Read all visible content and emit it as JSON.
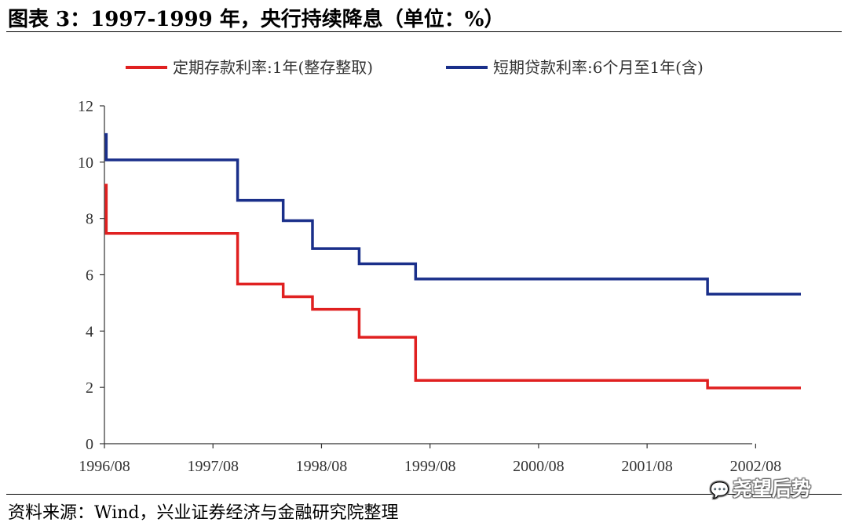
{
  "header": {
    "title": "图表 3：1997-1999 年，央行持续降息（单位：%）"
  },
  "footer": {
    "source": "资料来源：Wind，兴业证券经济与金融研究院整理",
    "watermark": "尧望后势"
  },
  "colors": {
    "deposit": "#e02020",
    "loan": "#1a2f8a",
    "axis": "#333333"
  },
  "chart_data": {
    "type": "line",
    "step": true,
    "title": "",
    "xlabel": "",
    "ylabel": "",
    "ylim": [
      0,
      12
    ],
    "yticks": [
      "0",
      "2",
      "4",
      "6",
      "8",
      "10",
      "12"
    ],
    "xlim": [
      1996.583,
      2003.0
    ],
    "xticks": [
      {
        "label": "1996/08",
        "x": 1996.583
      },
      {
        "label": "1997/08",
        "x": 1997.583
      },
      {
        "label": "1998/08",
        "x": 1998.583
      },
      {
        "label": "1999/08",
        "x": 1999.583
      },
      {
        "label": "2000/08",
        "x": 2000.583
      },
      {
        "label": "2001/08",
        "x": 2001.583
      },
      {
        "label": "2002/08",
        "x": 2002.583
      }
    ],
    "legend_position": "top",
    "series": [
      {
        "name": "定期存款利率:1年(整存整取)",
        "color_key": "deposit",
        "points": [
          {
            "x": 1996.583,
            "y": 9.18
          },
          {
            "x": 1996.6,
            "y": 7.47
          },
          {
            "x": 1997.81,
            "y": 5.67
          },
          {
            "x": 1998.23,
            "y": 5.22
          },
          {
            "x": 1998.5,
            "y": 4.77
          },
          {
            "x": 1998.93,
            "y": 3.78
          },
          {
            "x": 1999.45,
            "y": 2.25
          },
          {
            "x": 2002.14,
            "y": 1.98
          },
          {
            "x": 2003.0,
            "y": 1.98
          }
        ]
      },
      {
        "name": "短期贷款利率:6个月至1年(含)",
        "color_key": "loan",
        "points": [
          {
            "x": 1996.583,
            "y": 10.98
          },
          {
            "x": 1996.6,
            "y": 10.08
          },
          {
            "x": 1997.81,
            "y": 8.64
          },
          {
            "x": 1998.23,
            "y": 7.92
          },
          {
            "x": 1998.5,
            "y": 6.93
          },
          {
            "x": 1998.93,
            "y": 6.39
          },
          {
            "x": 1999.45,
            "y": 5.85
          },
          {
            "x": 2002.14,
            "y": 5.31
          },
          {
            "x": 2003.0,
            "y": 5.31
          }
        ]
      }
    ]
  }
}
